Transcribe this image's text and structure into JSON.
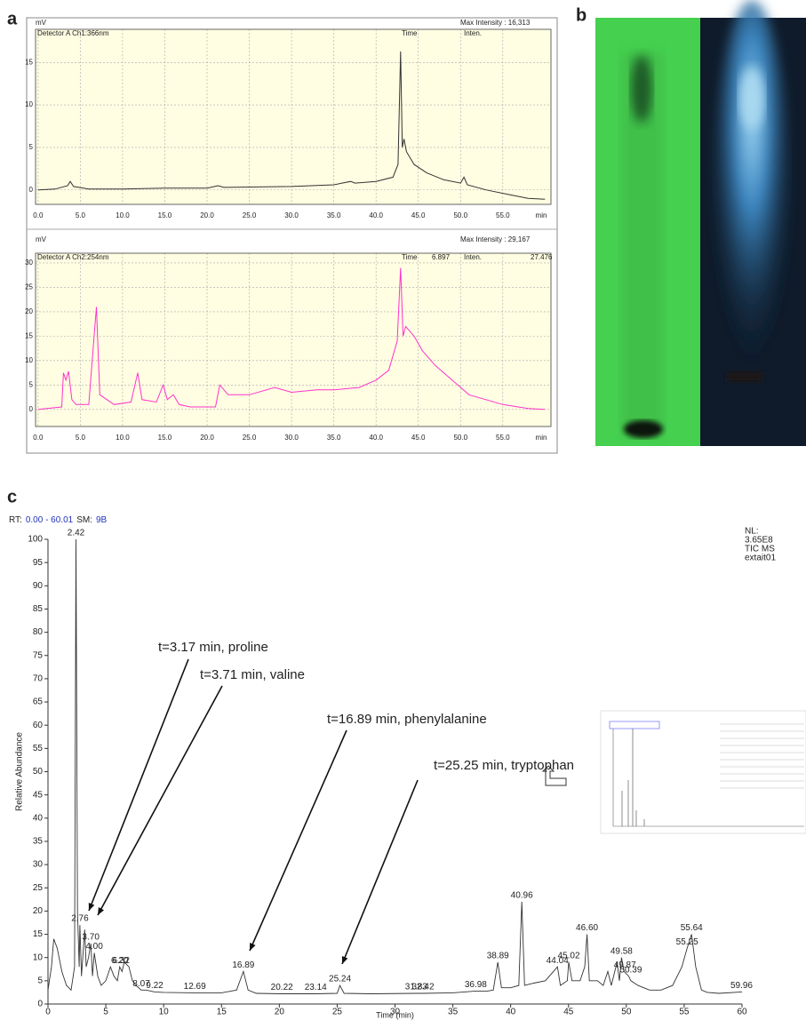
{
  "figure": {
    "panels": [
      "a",
      "b",
      "c"
    ]
  },
  "chart_data": [
    {
      "type": "line",
      "y_unit": "mV",
      "series_label": "Detector A Ch1:366nm",
      "max_intensity": "Max Intensity : 16,313",
      "time_label": "Time",
      "inten_label": "Inten.",
      "x_unit": "min",
      "color": "#333333",
      "grid": true,
      "xlim": [
        -0.3,
        60.7
      ],
      "ylim": [
        -1.7,
        18.9
      ],
      "xticks": [
        {
          "value": 0,
          "label": "0.0"
        },
        {
          "value": 5,
          "label": "5.0"
        },
        {
          "value": 10,
          "label": "10.0"
        },
        {
          "value": 15,
          "label": "15.0"
        },
        {
          "value": 20,
          "label": "20.0"
        },
        {
          "value": 25,
          "label": "25.0"
        },
        {
          "value": 30,
          "label": "30.0"
        },
        {
          "value": 35,
          "label": "35.0"
        },
        {
          "value": 40,
          "label": "40.0"
        },
        {
          "value": 45,
          "label": "45.0"
        },
        {
          "value": 50,
          "label": "50.0"
        },
        {
          "value": 55,
          "label": "55.0"
        }
      ],
      "yticks": [
        0,
        5,
        10,
        15
      ],
      "x": [
        0,
        2,
        3.5,
        3.8,
        4.2,
        6,
        10,
        15,
        20,
        21.3,
        22,
        30,
        35,
        37,
        37.5,
        40,
        42,
        42.6,
        42.9,
        43.1,
        43.3,
        43.6,
        44.5,
        46,
        48,
        50,
        50.4,
        50.8,
        53,
        56,
        58,
        60
      ],
      "values": [
        0,
        0.1,
        0.5,
        1,
        0.4,
        0.1,
        0.1,
        0.2,
        0.2,
        0.5,
        0.3,
        0.4,
        0.6,
        1,
        0.8,
        1,
        1.5,
        3,
        16.3,
        5,
        6,
        4.5,
        3,
        2,
        1.2,
        0.8,
        1.5,
        0.6,
        0,
        -0.6,
        -1,
        -1.1
      ]
    },
    {
      "type": "line",
      "y_unit": "mV",
      "series_label": "Detector A Ch2:254nm",
      "max_intensity": "Max Intensity : 29,167",
      "time_label": "Time",
      "time_value": "6.897",
      "inten_label": "Inten.",
      "inten_value": "27.476",
      "x_unit": "min",
      "color": "#ff33cc",
      "grid": true,
      "xlim": [
        -0.3,
        60.7
      ],
      "ylim": [
        -3.5,
        32
      ],
      "xticks": [
        {
          "value": 0,
          "label": "0.0"
        },
        {
          "value": 5,
          "label": "5.0"
        },
        {
          "value": 10,
          "label": "10.0"
        },
        {
          "value": 15,
          "label": "15.0"
        },
        {
          "value": 20,
          "label": "20.0"
        },
        {
          "value": 25,
          "label": "25.0"
        },
        {
          "value": 30,
          "label": "30.0"
        },
        {
          "value": 35,
          "label": "35.0"
        },
        {
          "value": 40,
          "label": "40.0"
        },
        {
          "value": 45,
          "label": "45.0"
        },
        {
          "value": 50,
          "label": "50.0"
        },
        {
          "value": 55,
          "label": "55.0"
        }
      ],
      "yticks": [
        0,
        5,
        10,
        15,
        20,
        25,
        30
      ],
      "x": [
        0,
        2.8,
        3.0,
        3.3,
        3.6,
        4.0,
        4.5,
        6,
        6.9,
        7.3,
        9,
        11,
        11.8,
        12.3,
        14,
        14.8,
        15.3,
        16,
        16.7,
        18,
        21,
        21.5,
        22.5,
        25,
        28,
        30,
        33,
        35,
        38,
        40,
        41.5,
        42.5,
        42.9,
        43.2,
        43.5,
        44.5,
        45.5,
        47,
        49,
        51,
        53,
        55,
        58,
        60
      ],
      "values": [
        0,
        0.5,
        7.5,
        6,
        7.8,
        2,
        1,
        1,
        21,
        3,
        1,
        1.5,
        7.5,
        2,
        1.5,
        5,
        2,
        3,
        1,
        0.5,
        0.5,
        5,
        3,
        3,
        4.5,
        3.5,
        4,
        4,
        4.5,
        6,
        8,
        14,
        29,
        15,
        17,
        15,
        12,
        9,
        6,
        3,
        2,
        1,
        0.2,
        0
      ]
    },
    {
      "type": "line",
      "rt_label": "RT:",
      "rt_range": "0.00 - 60.01",
      "sm_label": "SM:",
      "sm_value": "9B",
      "info": [
        "NL:",
        "3.65E8",
        "TIC  MS",
        "extait01"
      ],
      "x_label": "Time (min)",
      "y_label": "Relative Abundance",
      "color": "#333333",
      "grid": false,
      "xlim": [
        0,
        60
      ],
      "ylim": [
        0,
        100
      ],
      "xticks": [
        0,
        5,
        10,
        15,
        20,
        25,
        30,
        35,
        40,
        45,
        50,
        55,
        60
      ],
      "yticks": [
        0,
        5,
        10,
        15,
        20,
        25,
        30,
        35,
        40,
        45,
        50,
        55,
        60,
        65,
        70,
        75,
        80,
        85,
        90,
        95,
        100
      ],
      "x": [
        0,
        0.3,
        0.5,
        0.8,
        1.2,
        1.6,
        2.0,
        2.3,
        2.42,
        2.55,
        2.7,
        2.76,
        2.9,
        3.17,
        3.3,
        3.5,
        3.7,
        3.85,
        4.0,
        4.3,
        4.6,
        5.0,
        5.4,
        5.7,
        6.0,
        6.2,
        6.4,
        6.6,
        7.0,
        7.3,
        7.6,
        8.07,
        8.5,
        9.22,
        10,
        12.69,
        15,
        16.3,
        16.89,
        17.3,
        18,
        20.22,
        23.14,
        25.0,
        25.24,
        25.6,
        28,
        31.83,
        32.42,
        35,
        36.98,
        38,
        38.5,
        38.89,
        39.2,
        40,
        40.7,
        40.96,
        41.2,
        42,
        43,
        44.04,
        44.3,
        44.9,
        45.02,
        45.3,
        46,
        46.4,
        46.6,
        46.8,
        47.5,
        48,
        48.4,
        48.7,
        49.2,
        49.4,
        49.58,
        49.8,
        50.2,
        50.39,
        51,
        52,
        53,
        54,
        54.8,
        55.25,
        55.64,
        56,
        56.5,
        57,
        58,
        59.96,
        60
      ],
      "values": [
        3,
        8,
        14,
        12,
        7,
        4,
        3,
        8,
        100,
        20,
        8,
        17,
        6,
        16,
        8,
        10,
        13,
        6,
        11,
        6,
        4,
        5,
        8,
        6,
        5,
        8,
        7,
        9,
        8,
        5,
        4,
        3,
        3,
        2.6,
        2.5,
        2.4,
        2.4,
        3,
        7,
        3,
        2.3,
        2.2,
        2.2,
        2.3,
        4,
        2.3,
        2.2,
        2.3,
        2.3,
        2.4,
        2.8,
        2.8,
        3,
        9,
        3.5,
        3.5,
        4,
        22,
        4,
        4.5,
        5,
        8,
        4,
        5,
        9,
        5,
        5,
        8,
        15,
        5,
        5,
        4,
        7,
        4,
        9,
        5,
        10,
        7,
        6,
        5,
        4,
        3,
        3,
        4,
        8,
        12,
        15,
        8,
        3,
        2.5,
        2.3,
        2.6,
        2.6
      ],
      "peak_labels": [
        {
          "x": 2.42,
          "label": "2.42"
        },
        {
          "x": 2.76,
          "label": "2.76"
        },
        {
          "x": 3.7,
          "label": "3.70"
        },
        {
          "x": 4.0,
          "label": "4.00"
        },
        {
          "x": 6.2,
          "label": "6.20"
        },
        {
          "x": 6.32,
          "label": "6.32"
        },
        {
          "x": 8.07,
          "label": "8.07"
        },
        {
          "x": 9.22,
          "label": "9.22"
        },
        {
          "x": 12.69,
          "label": "12.69"
        },
        {
          "x": 16.89,
          "label": "16.89"
        },
        {
          "x": 20.22,
          "label": "20.22"
        },
        {
          "x": 23.14,
          "label": "23.14"
        },
        {
          "x": 25.24,
          "label": "25.24"
        },
        {
          "x": 31.83,
          "label": "31.83"
        },
        {
          "x": 32.42,
          "label": "32.42"
        },
        {
          "x": 36.98,
          "label": "36.98"
        },
        {
          "x": 38.89,
          "label": "38.89"
        },
        {
          "x": 40.96,
          "label": "40.96"
        },
        {
          "x": 44.04,
          "label": "44.04"
        },
        {
          "x": 45.02,
          "label": "45.02"
        },
        {
          "x": 46.6,
          "label": "46.60"
        },
        {
          "x": 49.58,
          "label": "49.58"
        },
        {
          "x": 49.87,
          "label": "49.87"
        },
        {
          "x": 50.39,
          "label": "50.39"
        },
        {
          "x": 55.25,
          "label": "55.25"
        },
        {
          "x": 55.64,
          "label": "55.64"
        },
        {
          "x": 59.96,
          "label": "59.96"
        }
      ],
      "annotations": [
        "t=3.17 min, proline",
        "t=3.71 min, valine",
        "t=16.89 min, phenylalanine",
        "t=25.25 min, tryptophan"
      ]
    }
  ]
}
